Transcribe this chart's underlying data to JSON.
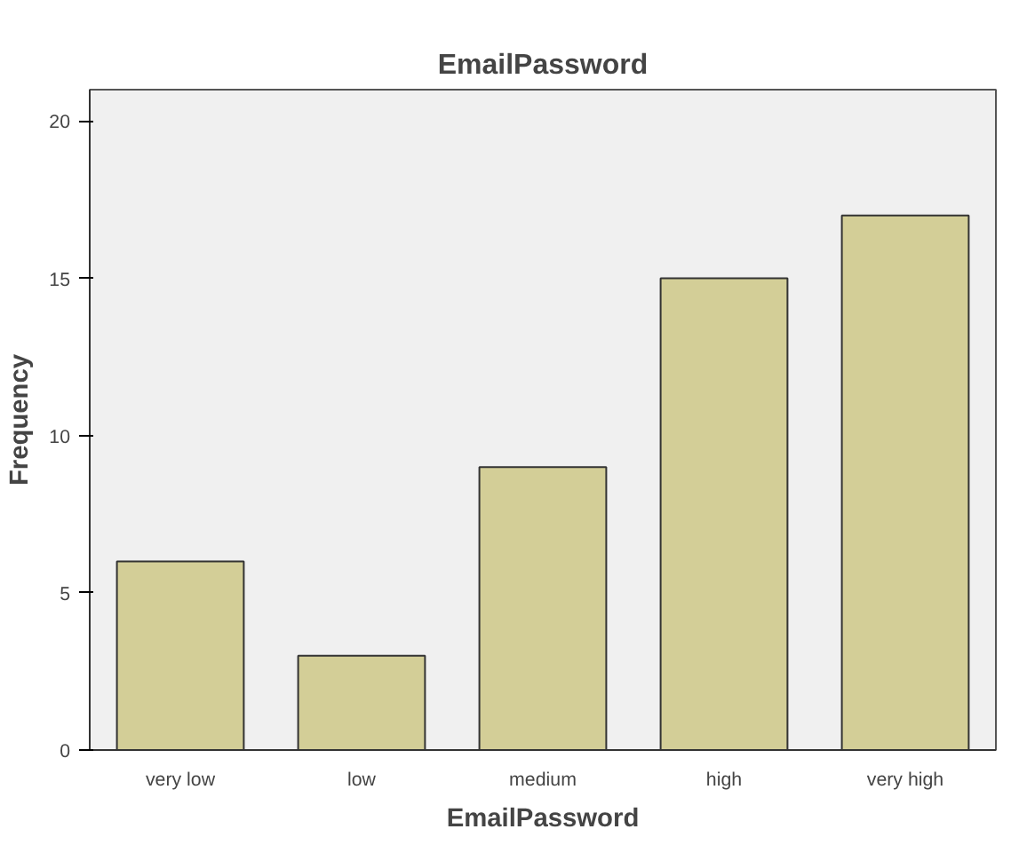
{
  "chart_data": {
    "type": "bar",
    "title": "EmailPassword",
    "xlabel": "EmailPassword",
    "ylabel": "Frequency",
    "categories": [
      "very low",
      "low",
      "medium",
      "high",
      "very high"
    ],
    "values": [
      6,
      3,
      9,
      15,
      17
    ],
    "color": "#d3ce97",
    "ylim": [
      0,
      21
    ],
    "yticks": [
      0,
      5,
      10,
      15,
      20
    ],
    "grid": false
  }
}
